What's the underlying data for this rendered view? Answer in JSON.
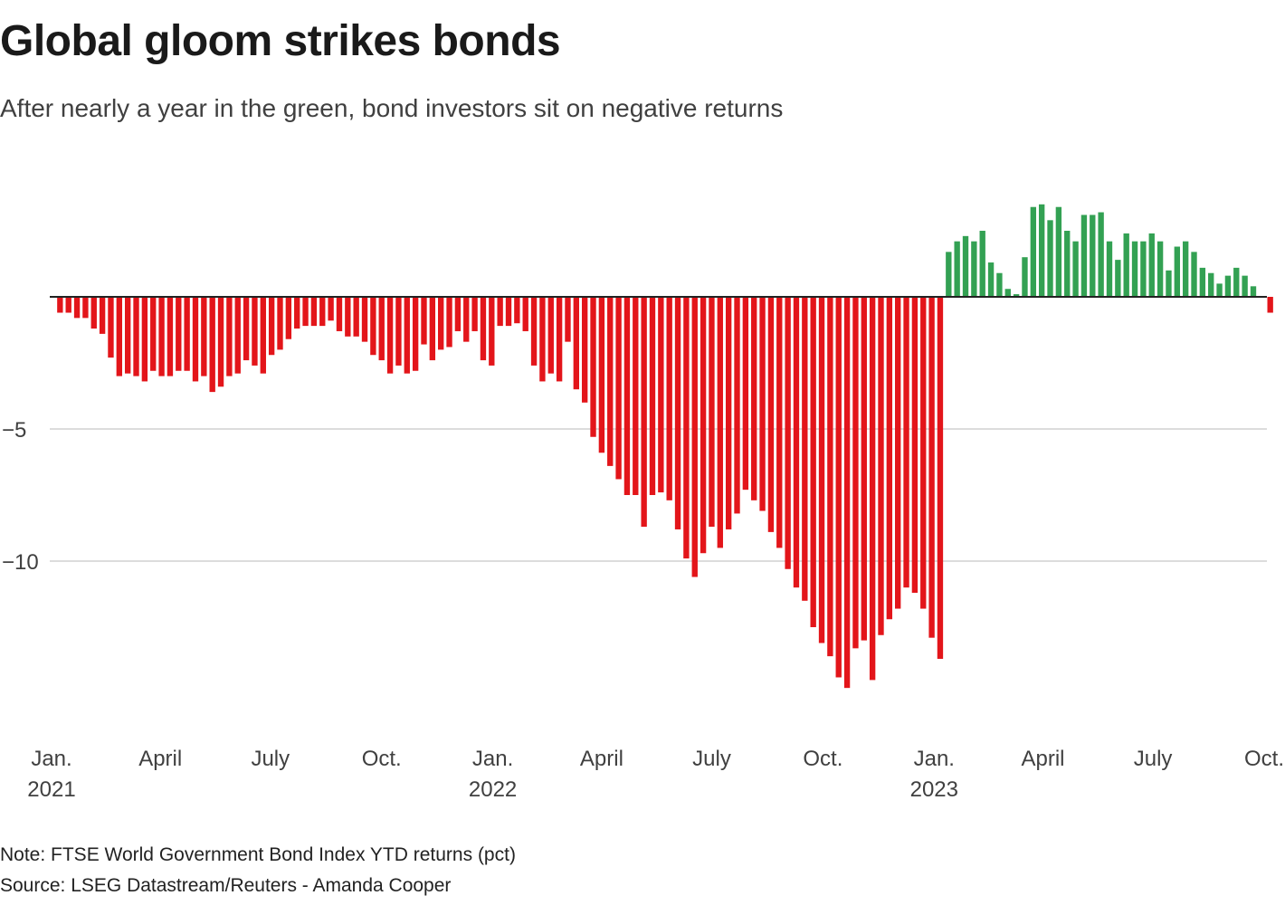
{
  "title": "Global gloom strikes bonds",
  "subtitle": "After nearly a year in the green, bond investors sit on negative returns",
  "note": "Note: FTSE World Government Bond Index YTD returns (pct)",
  "source": "Source: LSEG Datastream/Reuters - Amanda Cooper",
  "colors": {
    "negative": "#e3151a",
    "positive": "#33a153",
    "grid": "#c8c8c8",
    "zero_line": "#222222"
  },
  "chart_data": {
    "type": "bar",
    "title": "Global gloom strikes bonds",
    "subtitle": "After nearly a year in the green, bond investors sit on negative returns",
    "xlabel": "",
    "ylabel": "",
    "ylim": [
      -15.5,
      5
    ],
    "grid": true,
    "y_ticks": [
      {
        "value": -5,
        "label": "−5"
      },
      {
        "value": -10,
        "label": "−10"
      }
    ],
    "x_range": [
      "2021-01-01",
      "2023-10-01"
    ],
    "x_ticks": [
      {
        "date": "2021-01-01",
        "label": [
          "Jan.",
          "2021"
        ]
      },
      {
        "date": "2021-04-01",
        "label": [
          "April"
        ]
      },
      {
        "date": "2021-07-01",
        "label": [
          "July"
        ]
      },
      {
        "date": "2021-10-01",
        "label": [
          "Oct."
        ]
      },
      {
        "date": "2022-01-01",
        "label": [
          "Jan.",
          "2022"
        ]
      },
      {
        "date": "2022-04-01",
        "label": [
          "April"
        ]
      },
      {
        "date": "2022-07-01",
        "label": [
          "July"
        ]
      },
      {
        "date": "2022-10-01",
        "label": [
          "Oct."
        ]
      },
      {
        "date": "2023-01-01",
        "label": [
          "Jan.",
          "2023"
        ]
      },
      {
        "date": "2023-04-01",
        "label": [
          "April"
        ]
      },
      {
        "date": "2023-07-01",
        "label": [
          "July"
        ]
      },
      {
        "date": "2023-10-01",
        "label": [
          "Oct."
        ]
      }
    ],
    "frequency": "weekly",
    "first_week": "2021-01-08",
    "values": [
      -0.6,
      -0.6,
      -0.8,
      -0.8,
      -1.2,
      -1.4,
      -2.3,
      -3.0,
      -2.9,
      -3.0,
      -3.2,
      -2.8,
      -3.0,
      -3.0,
      -2.8,
      -2.8,
      -3.2,
      -3.0,
      -3.6,
      -3.4,
      -3.0,
      -2.9,
      -2.4,
      -2.6,
      -2.9,
      -2.2,
      -2.0,
      -1.6,
      -1.2,
      -1.1,
      -1.1,
      -1.1,
      -0.9,
      -1.3,
      -1.5,
      -1.5,
      -1.7,
      -2.2,
      -2.4,
      -2.9,
      -2.6,
      -2.9,
      -2.8,
      -1.8,
      -2.4,
      -2.0,
      -1.9,
      -1.3,
      -1.7,
      -1.3,
      -2.4,
      -2.6,
      -1.1,
      -1.1,
      -1.0,
      -1.3,
      -2.6,
      -3.2,
      -2.9,
      -3.2,
      -1.7,
      -3.5,
      -4.0,
      -5.3,
      -5.9,
      -6.4,
      -6.9,
      -7.5,
      -7.5,
      -8.7,
      -7.5,
      -7.4,
      -7.7,
      -8.8,
      -9.9,
      -10.6,
      -9.7,
      -8.7,
      -9.5,
      -8.8,
      -8.2,
      -7.3,
      -7.7,
      -8.1,
      -8.9,
      -9.5,
      -10.3,
      -11.0,
      -11.5,
      -12.5,
      -13.1,
      -13.6,
      -14.4,
      -14.8,
      -13.3,
      -13.0,
      -14.5,
      -12.8,
      -12.2,
      -11.8,
      -11.0,
      -11.2,
      -11.8,
      -12.9,
      -13.7,
      1.7,
      2.1,
      2.3,
      2.1,
      2.5,
      1.3,
      0.9,
      0.3,
      0.1,
      1.5,
      3.4,
      3.5,
      2.9,
      3.4,
      2.5,
      2.1,
      3.1,
      3.1,
      3.2,
      2.1,
      1.4,
      2.4,
      2.1,
      2.1,
      2.4,
      2.1,
      1.0,
      1.9,
      2.1,
      1.7,
      1.1,
      0.9,
      0.5,
      0.8,
      1.1,
      0.8,
      0.4,
      0.0,
      -0.6
    ]
  }
}
